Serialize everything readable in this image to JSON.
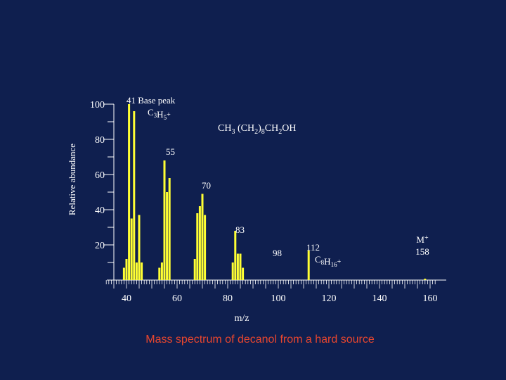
{
  "chart_data": {
    "type": "bar",
    "title": "CH3 (CH2)8CH2OH",
    "caption": "Mass spectrum of decanol from a hard source",
    "xlabel": "m/z",
    "ylabel": "Relative abundance",
    "xlim": [
      32,
      162
    ],
    "ylim": [
      0,
      100
    ],
    "x_ticks": [
      40,
      60,
      80,
      100,
      120,
      140,
      160
    ],
    "y_ticks": [
      20,
      40,
      60,
      80,
      100
    ],
    "bar_color": "#ffff33",
    "background": "#0f1f4f",
    "caption_color": "#e8462e",
    "peaks": [
      {
        "mz": 41,
        "intensity": 100
      },
      {
        "mz": 39,
        "intensity": 7
      },
      {
        "mz": 40,
        "intensity": 12
      },
      {
        "mz": 42,
        "intensity": 35
      },
      {
        "mz": 43,
        "intensity": 96
      },
      {
        "mz": 44,
        "intensity": 10
      },
      {
        "mz": 45,
        "intensity": 37
      },
      {
        "mz": 46,
        "intensity": 10
      },
      {
        "mz": 53,
        "intensity": 7
      },
      {
        "mz": 54,
        "intensity": 10
      },
      {
        "mz": 55,
        "intensity": 68
      },
      {
        "mz": 56,
        "intensity": 50
      },
      {
        "mz": 57,
        "intensity": 58
      },
      {
        "mz": 67,
        "intensity": 12
      },
      {
        "mz": 68,
        "intensity": 38
      },
      {
        "mz": 69,
        "intensity": 42
      },
      {
        "mz": 70,
        "intensity": 49
      },
      {
        "mz": 71,
        "intensity": 37
      },
      {
        "mz": 82,
        "intensity": 10
      },
      {
        "mz": 83,
        "intensity": 28
      },
      {
        "mz": 84,
        "intensity": 15
      },
      {
        "mz": 85,
        "intensity": 15
      },
      {
        "mz": 86,
        "intensity": 7
      },
      {
        "mz": 112,
        "intensity": 17
      },
      {
        "mz": 158,
        "intensity": 0.8
      }
    ],
    "annotations": [
      {
        "mz": 41,
        "lines": [
          "41 Base peak",
          "C3H5+"
        ]
      },
      {
        "mz": 55,
        "lines": [
          "55"
        ]
      },
      {
        "mz": 70,
        "lines": [
          "70"
        ]
      },
      {
        "mz": 83,
        "lines": [
          "83"
        ]
      },
      {
        "mz": 98,
        "lines": [
          "98"
        ]
      },
      {
        "mz": 112,
        "lines": [
          "112",
          "C8H16+"
        ]
      },
      {
        "mz": 158,
        "lines": [
          "M+",
          "158"
        ]
      }
    ]
  }
}
